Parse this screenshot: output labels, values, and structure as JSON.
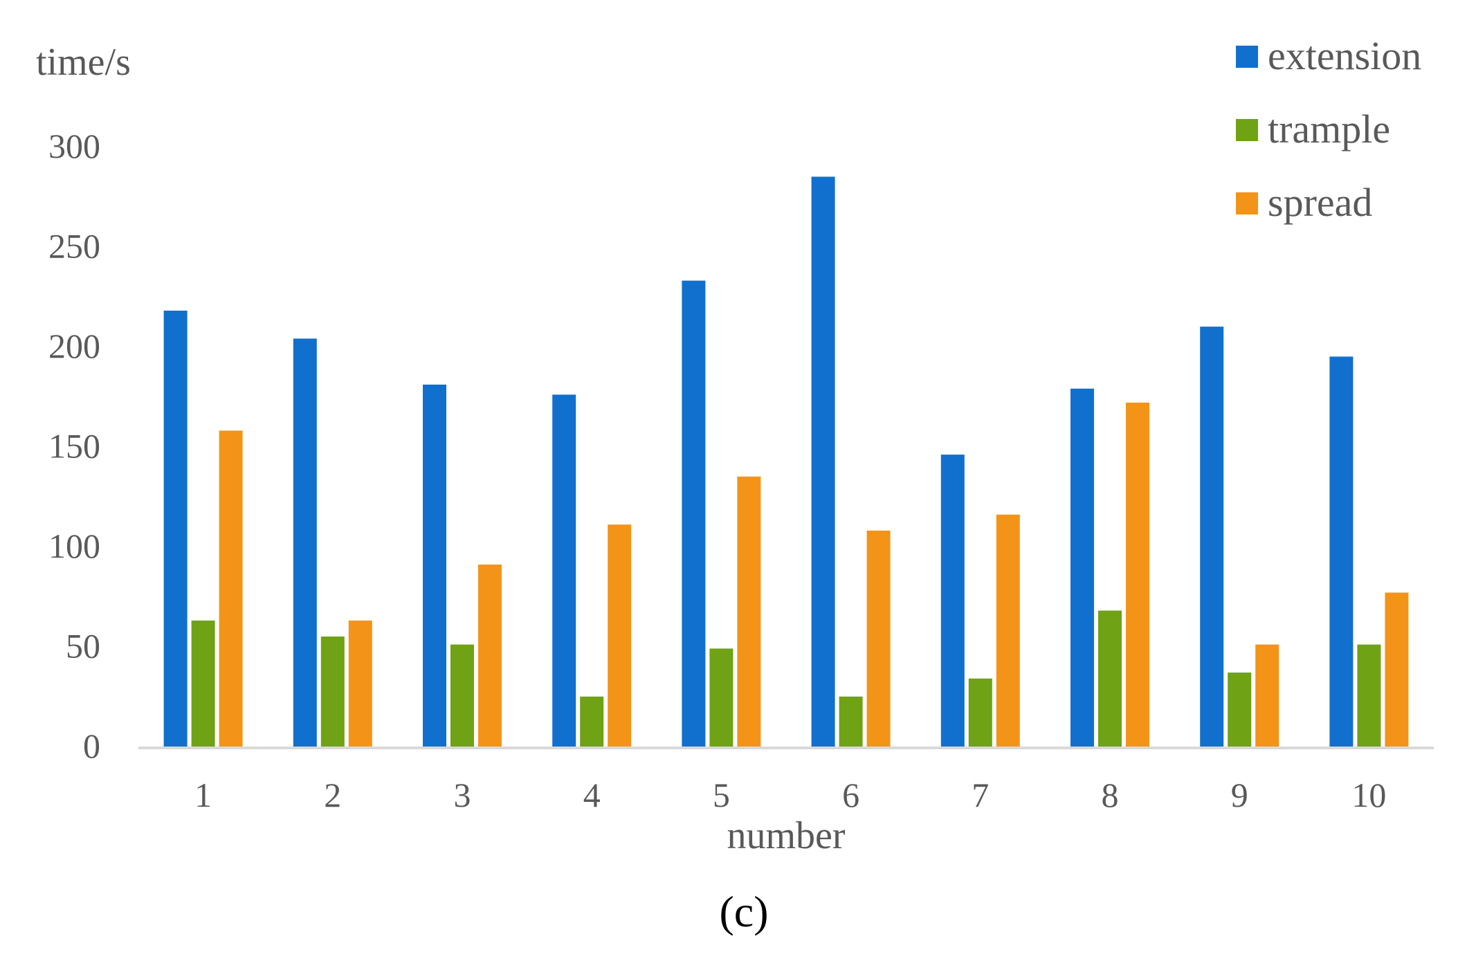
{
  "chart_data": {
    "type": "bar",
    "title": "",
    "caption": "(c)",
    "xlabel": "number",
    "ylabel": "time/s",
    "categories": [
      "1",
      "2",
      "3",
      "4",
      "5",
      "6",
      "7",
      "8",
      "9",
      "10"
    ],
    "ylim": [
      0,
      300
    ],
    "yticks": [
      "0",
      "50",
      "100",
      "150",
      "200",
      "250",
      "300"
    ],
    "grid": false,
    "legend_position": "top-right",
    "series": [
      {
        "name": "extension",
        "color": "#1170CD",
        "values": [
          218,
          204,
          181,
          176,
          233,
          285,
          146,
          179,
          210,
          195
        ]
      },
      {
        "name": "trample",
        "color": "#6FA215",
        "values": [
          63,
          55,
          51,
          25,
          49,
          25,
          34,
          68,
          37,
          51
        ]
      },
      {
        "name": "spread",
        "color": "#F39418",
        "values": [
          158,
          63,
          91,
          111,
          135,
          108,
          116,
          172,
          51,
          77
        ]
      }
    ]
  }
}
